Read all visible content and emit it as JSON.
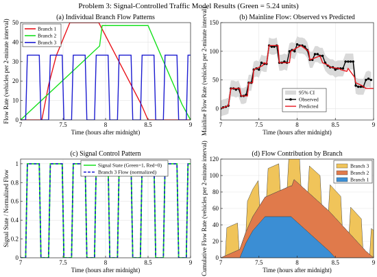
{
  "figure_title": "Problem 3: Signal-Controlled Traffic Model Results (Green = 5.24 units)",
  "chart_data": [
    {
      "id": "a",
      "type": "line",
      "title": "(a) Individual Branch Flow Patterns",
      "xlabel": "Time (hours after midnight)",
      "ylabel": "Flow Rate (vehicles per 2-minute interval)",
      "xlim": [
        7,
        9
      ],
      "ylim": [
        0,
        50
      ],
      "xticks": [
        7,
        7.5,
        8,
        8.5,
        9
      ],
      "yticks": [
        0,
        10,
        20,
        30,
        40,
        50
      ],
      "grid": true,
      "legend": "top-left",
      "series": [
        {
          "name": "Branch 1",
          "color": "#e8141b",
          "x": [
            7,
            7.25,
            7.33,
            7.42,
            7.58,
            7.92,
            8.42,
            8.5,
            9
          ],
          "y": [
            0,
            0,
            18,
            33,
            50,
            50,
            8,
            0,
            0
          ]
        },
        {
          "name": "Branch 2",
          "color": "#14e01c",
          "x": [
            7,
            7.93,
            7.96,
            8.5,
            8.9,
            9
          ],
          "y": [
            0,
            38,
            48.5,
            48.5,
            8,
            0
          ]
        },
        {
          "name": "Branch 3",
          "color": "#1a1ad0",
          "x": [
            7,
            7.06,
            7.08,
            7.22,
            7.24,
            7.33,
            7.35,
            7.49,
            7.51,
            7.6,
            7.62,
            7.76,
            7.78,
            7.87,
            7.89,
            8.03,
            8.05,
            8.14,
            8.16,
            8.3,
            8.32,
            8.41,
            8.43,
            8.57,
            8.59,
            8.68,
            8.7,
            8.84,
            8.86,
            8.95,
            8.97,
            9
          ],
          "y": [
            0,
            0,
            33.3,
            33.3,
            0,
            0,
            33.3,
            33.3,
            0,
            0,
            33.3,
            33.3,
            0,
            0,
            33.3,
            33.3,
            0,
            0,
            33.3,
            33.3,
            0,
            0,
            33.3,
            33.3,
            0,
            0,
            33.3,
            33.3,
            0,
            0,
            33.3,
            33.3
          ]
        }
      ]
    },
    {
      "id": "b",
      "type": "line",
      "title": "(b) Mainline Flow: Observed vs Predicted",
      "xlabel": "Time (hours after midnight)",
      "ylabel": "Mainline Flow Rate (vehicles per 2-minute interval)",
      "xlim": [
        7,
        9
      ],
      "ylim": [
        -20,
        150
      ],
      "xticks": [
        7,
        7.5,
        8,
        8.5,
        9
      ],
      "yticks": [
        0,
        50,
        100,
        150
      ],
      "grid": true,
      "legend": "bottom-right",
      "ci": {
        "name": "95% CI",
        "color": "#d9d9d9",
        "half_width": 14
      },
      "series": [
        {
          "name": "Observed",
          "color": "#000000",
          "marker": "circle",
          "x": [
            7,
            7.033,
            7.067,
            7.1,
            7.133,
            7.167,
            7.2,
            7.233,
            7.267,
            7.3,
            7.333,
            7.367,
            7.4,
            7.433,
            7.467,
            7.5,
            7.533,
            7.567,
            7.6,
            7.633,
            7.667,
            7.7,
            7.733,
            7.767,
            7.8,
            7.833,
            7.867,
            7.9,
            7.933,
            7.967,
            8,
            8.033,
            8.067,
            8.1,
            8.133,
            8.167,
            8.2,
            8.233,
            8.267,
            8.3,
            8.333,
            8.367,
            8.4,
            8.433,
            8.467,
            8.5,
            8.533,
            8.567,
            8.6,
            8.633,
            8.667,
            8.7,
            8.733,
            8.767,
            8.8,
            8.833,
            8.867,
            8.9,
            8.933,
            8.967
          ],
          "y": [
            0,
            2,
            3,
            5,
            35,
            35,
            33,
            35,
            22,
            22,
            24,
            45,
            45,
            68,
            70,
            68,
            80,
            78,
            78,
            110,
            108,
            108,
            110,
            80,
            80,
            82,
            80,
            100,
            102,
            100,
            112,
            110,
            110,
            108,
            102,
            85,
            85,
            95,
            95,
            92,
            92,
            80,
            75,
            72,
            72,
            68,
            70,
            70,
            70,
            82,
            82,
            82,
            82,
            40,
            38,
            38,
            38,
            50,
            52,
            50
          ]
        },
        {
          "name": "Predicted",
          "color": "#e8141b",
          "x": [
            7,
            7.1,
            7.133,
            7.25,
            7.267,
            7.35,
            7.367,
            7.417,
            7.433,
            7.55,
            7.567,
            7.6,
            7.633,
            7.75,
            7.767,
            7.9,
            7.917,
            8.05,
            8.067,
            8.15,
            8.167,
            8.3,
            8.333,
            8.417,
            8.433,
            8.55,
            8.567,
            8.65,
            8.667,
            8.75,
            8.767,
            8.85,
            8.9,
            9
          ],
          "y": [
            0,
            5,
            35,
            35,
            22,
            22,
            45,
            45,
            68,
            75,
            80,
            78,
            110,
            110,
            80,
            80,
            100,
            110,
            108,
            100,
            85,
            92,
            80,
            75,
            72,
            70,
            68,
            65,
            70,
            55,
            45,
            40,
            35,
            35
          ]
        }
      ]
    },
    {
      "id": "c",
      "type": "line",
      "title": "(c) Signal Control Pattern",
      "xlabel": "Time (hours after midnight)",
      "ylabel": "Signal State / Normalized Flow",
      "xlim": [
        7,
        9
      ],
      "ylim": [
        0,
        1.05
      ],
      "xticks": [
        7,
        7.5,
        8,
        8.5,
        9
      ],
      "yticks": [
        0,
        0.2,
        0.4,
        0.6,
        0.8,
        1
      ],
      "grid": true,
      "legend": "top-right",
      "series": [
        {
          "name": "Signal State (Green=1, Red=0)",
          "color": "#14e01c",
          "style": "solid",
          "x": [
            7,
            7.06,
            7.08,
            7.22,
            7.24,
            7.33,
            7.35,
            7.49,
            7.51,
            7.6,
            7.62,
            7.76,
            7.78,
            7.87,
            7.89,
            8.03,
            8.05,
            8.14,
            8.16,
            8.3,
            8.32,
            8.41,
            8.43,
            8.57,
            8.59,
            8.68,
            8.7,
            8.84,
            8.86,
            8.95,
            8.97,
            9
          ],
          "y": [
            0,
            0,
            1,
            1,
            0,
            0,
            1,
            1,
            0,
            0,
            1,
            1,
            0,
            0,
            1,
            1,
            0,
            0,
            1,
            1,
            0,
            0,
            1,
            1,
            0,
            0,
            1,
            1,
            0,
            0,
            1,
            1
          ]
        },
        {
          "name": "Branch 3 Flow (normalized)",
          "color": "#1a1ad0",
          "style": "dashed",
          "x": [
            7,
            7.06,
            7.08,
            7.22,
            7.24,
            7.33,
            7.35,
            7.49,
            7.51,
            7.6,
            7.62,
            7.76,
            7.78,
            7.87,
            7.89,
            8.03,
            8.05,
            8.14,
            8.16,
            8.3,
            8.32,
            8.41,
            8.43,
            8.57,
            8.59,
            8.68,
            8.7,
            8.84,
            8.86,
            8.95,
            8.97,
            9
          ],
          "y": [
            0,
            0,
            1,
            1,
            0,
            0,
            1,
            1,
            0,
            0,
            1,
            1,
            0,
            0,
            1,
            1,
            0,
            0,
            1,
            1,
            0,
            0,
            1,
            1,
            0,
            0,
            1,
            1,
            0,
            0,
            1,
            1
          ]
        }
      ]
    },
    {
      "id": "d",
      "type": "area",
      "title": "(d) Flow Contribution by Branch",
      "xlabel": "Time (hours after midnight)",
      "ylabel": "Cumulative Flow Rate (vehicles per 2-minute interval)",
      "xlim": [
        7,
        9
      ],
      "ylim": [
        0,
        120
      ],
      "xticks": [
        7,
        7.5,
        8,
        8.5,
        9
      ],
      "yticks": [
        0,
        20,
        40,
        60,
        80,
        100,
        120
      ],
      "grid": true,
      "legend": "top-right",
      "legend_order": [
        "Branch 3",
        "Branch 2",
        "Branch 1"
      ],
      "series": [
        {
          "name": "Branch 1",
          "color": "#3b8ed4",
          "x": [
            7,
            7.25,
            7.33,
            7.42,
            7.58,
            7.92,
            8.42,
            8.5,
            9
          ],
          "y": [
            0,
            0,
            18,
            33,
            50,
            50,
            8,
            0,
            0
          ]
        },
        {
          "name": "Branch 2",
          "color": "#e07a4b",
          "x": [
            7,
            7.93,
            7.96,
            8.5,
            8.9,
            9
          ],
          "y": [
            0,
            38,
            48.5,
            48.5,
            8,
            0
          ]
        },
        {
          "name": "Branch 3",
          "color": "#f0c45a",
          "x": [
            7,
            7.06,
            7.08,
            7.22,
            7.24,
            7.33,
            7.35,
            7.49,
            7.51,
            7.6,
            7.62,
            7.76,
            7.78,
            7.87,
            7.89,
            8.03,
            8.05,
            8.14,
            8.16,
            8.3,
            8.32,
            8.41,
            8.43,
            8.57,
            8.59,
            8.68,
            8.7,
            8.84,
            8.86,
            8.95,
            8.97,
            9
          ],
          "y": [
            0,
            0,
            33.3,
            33.3,
            0,
            0,
            33.3,
            33.3,
            0,
            0,
            33.3,
            33.3,
            0,
            0,
            33.3,
            33.3,
            0,
            0,
            33.3,
            33.3,
            0,
            0,
            33.3,
            33.3,
            0,
            0,
            33.3,
            33.3,
            0,
            0,
            33.3,
            33.3
          ]
        }
      ]
    }
  ]
}
